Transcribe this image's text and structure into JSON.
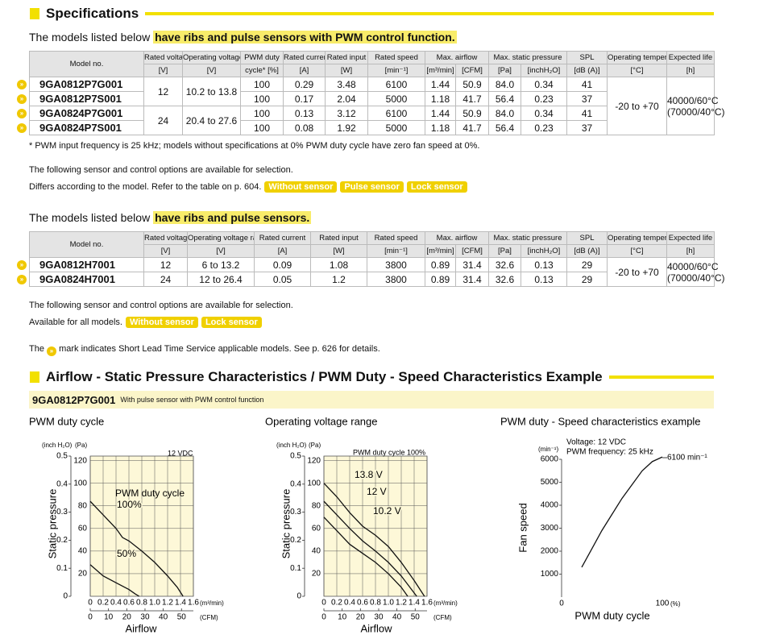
{
  "header": {
    "title": "Specifications"
  },
  "table1": {
    "intro": "The models listed below",
    "highlight": "have ribs and pulse sensors with PWM control function.",
    "columns": [
      {
        "label": "Model no."
      },
      {
        "label": "Rated voltage",
        "units": [
          "[V]"
        ]
      },
      {
        "label": "Operating voltage range",
        "units": [
          "[V]"
        ]
      },
      {
        "label": "PWM duty",
        "units": [
          "cycle* [%]"
        ]
      },
      {
        "label": "Rated current",
        "units": [
          "[A]"
        ]
      },
      {
        "label": "Rated input",
        "units": [
          "[W]"
        ]
      },
      {
        "label": "Rated speed",
        "units": [
          "[min⁻¹]"
        ]
      },
      {
        "label": "Max. airflow",
        "units": [
          "[m³/min]",
          "[CFM]"
        ]
      },
      {
        "label": "Max. static pressure",
        "units": [
          "[Pa]",
          "[inchH₂O]"
        ]
      },
      {
        "label": "SPL",
        "units": [
          "[dB (A)]"
        ]
      },
      {
        "label": "Operating temperature",
        "units": [
          "[°C]"
        ]
      },
      {
        "label": "Expected life",
        "units": [
          "[h]"
        ]
      }
    ],
    "groups": [
      {
        "cells": [
          "12",
          "10.2 to 13.8"
        ],
        "models": [
          {
            "model": "9GA0812P7G001",
            "values": [
              "100",
              "0.29",
              "3.48",
              "6100",
              "1.44",
              "50.9",
              "84.0",
              "0.34",
              "41"
            ]
          },
          {
            "model": "9GA0812P7S001",
            "values": [
              "100",
              "0.17",
              "2.04",
              "5000",
              "1.18",
              "41.7",
              "56.4",
              "0.23",
              "37"
            ]
          }
        ]
      },
      {
        "cells": [
          "24",
          "20.4 to 27.6"
        ],
        "models": [
          {
            "model": "9GA0824P7G001",
            "values": [
              "100",
              "0.13",
              "3.12",
              "6100",
              "1.44",
              "50.9",
              "84.0",
              "0.34",
              "41"
            ]
          },
          {
            "model": "9GA0824P7S001",
            "values": [
              "100",
              "0.08",
              "1.92",
              "5000",
              "1.18",
              "41.7",
              "56.4",
              "0.23",
              "37"
            ]
          }
        ]
      }
    ],
    "shared": [
      "-20 to +70",
      [
        "40000/60°C",
        "(70000/40°C)"
      ]
    ],
    "note": "* PWM input frequency is 25 kHz; models without specifications at 0% PWM duty cycle have zero fan speed at 0%."
  },
  "options1": {
    "lines": [
      "The following sensor and control options are available for selection.",
      "Differs according to the model. Refer to the table on p. 604."
    ],
    "badges": [
      "Without sensor",
      "Pulse sensor",
      "Lock sensor"
    ]
  },
  "table2": {
    "intro": "The models listed below",
    "highlight": "have ribs and pulse sensors.",
    "columns": [
      {
        "label": "Model no."
      },
      {
        "label": "Rated voltage",
        "units": [
          "[V]"
        ]
      },
      {
        "label": "Operating voltage range",
        "units": [
          "[V]"
        ]
      },
      {
        "label": "Rated current",
        "units": [
          "[A]"
        ]
      },
      {
        "label": "Rated input",
        "units": [
          "[W]"
        ]
      },
      {
        "label": "Rated speed",
        "units": [
          "[min⁻¹]"
        ]
      },
      {
        "label": "Max. airflow",
        "units": [
          "[m³/min]",
          "[CFM]"
        ]
      },
      {
        "label": "Max. static pressure",
        "units": [
          "[Pa]",
          "[inchH₂O]"
        ]
      },
      {
        "label": "SPL",
        "units": [
          "[dB (A)]"
        ]
      },
      {
        "label": "Operating temperature",
        "units": [
          "[°C]"
        ]
      },
      {
        "label": "Expected life",
        "units": [
          "[h]"
        ]
      }
    ],
    "groups": [
      {
        "cells": [
          "12",
          "6 to 13.2"
        ],
        "models": [
          {
            "model": "9GA0812H7001",
            "values": [
              "0.09",
              "1.08",
              "3800",
              "0.89",
              "31.4",
              "32.6",
              "0.13",
              "29"
            ]
          }
        ]
      },
      {
        "cells": [
          "24",
          "12 to 26.4"
        ],
        "models": [
          {
            "model": "9GA0824H7001",
            "values": [
              "0.05",
              "1.2",
              "3800",
              "0.89",
              "31.4",
              "32.6",
              "0.13",
              "29"
            ]
          }
        ]
      }
    ],
    "shared": [
      "-20 to +70",
      [
        "40000/60°C",
        "(70000/40°C)"
      ]
    ]
  },
  "options2": {
    "lines": [
      "The following sensor and control options are available for selection.",
      "Available for all models."
    ],
    "badges": [
      "Without sensor",
      "Lock sensor"
    ]
  },
  "legend_note": {
    "before": "The",
    "after": "mark indicates Short Lead Time Service applicable models. See p. 626 for details."
  },
  "section2": {
    "title": "Airflow - Static Pressure Characteristics / PWM Duty - Speed Characteristics Example",
    "model": "9GA0812P7G001",
    "model_note": "With pulse sensor with PWM control function"
  },
  "charts": [
    {
      "type": "line",
      "title": "PWM duty cycle",
      "annotations": [
        "12 VDC",
        "PWM duty cycle"
      ],
      "ylabel": "Static pressure",
      "xlabel": "Airflow",
      "ylim": [
        0,
        124
      ],
      "yticks": [
        20,
        40,
        60,
        80,
        100,
        120
      ],
      "yunit": "(Pa)",
      "y2lim": [
        0,
        0.5
      ],
      "y2ticks": [
        0,
        0.1,
        0.2,
        0.3,
        0.4,
        0.5
      ],
      "y2unit": "(inch H₂O)",
      "xlim": [
        0,
        1.6
      ],
      "xticks": [
        0,
        0.2,
        0.4,
        0.6,
        0.8,
        {
          "value": 1,
          "label": "1.0"
        },
        1.2,
        1.4,
        1.6
      ],
      "xunit": "(m³/min)",
      "x2lim": [
        0,
        56.5
      ],
      "x2ticks": [
        0,
        10,
        20,
        30,
        40,
        50
      ],
      "x2unit": "(CFM)",
      "grid": true,
      "series": [
        {
          "name": "100%",
          "x": [
            0,
            0.2,
            0.4,
            0.5,
            0.6,
            0.8,
            1.0,
            1.2,
            1.35,
            1.44
          ],
          "values": [
            84,
            72,
            60,
            52,
            49,
            40,
            30,
            18,
            8,
            0
          ]
        },
        {
          "name": "50%",
          "x": [
            0,
            0.2,
            0.4,
            0.6,
            0.7,
            0.76
          ],
          "values": [
            28,
            18,
            12,
            6,
            2,
            0
          ]
        }
      ]
    },
    {
      "type": "line",
      "title": "Operating voltage range",
      "annotations": [
        "PWM duty cycle 100%"
      ],
      "ylabel": "Static pressure",
      "xlabel": "Airflow",
      "ylim": [
        0,
        124
      ],
      "yticks": [
        20,
        40,
        60,
        80,
        100,
        120
      ],
      "yunit": "(Pa)",
      "y2lim": [
        0,
        0.5
      ],
      "y2ticks": [
        0,
        0.1,
        0.2,
        0.3,
        0.4,
        0.5
      ],
      "y2unit": "(inch H₂O)",
      "xlim": [
        0,
        1.6
      ],
      "xticks": [
        0,
        0.2,
        0.4,
        0.6,
        0.8,
        {
          "value": 1,
          "label": "1.0"
        },
        1.2,
        1.4,
        1.6
      ],
      "xunit": "(m³/min)",
      "x2lim": [
        0,
        56.5
      ],
      "x2ticks": [
        0,
        10,
        20,
        30,
        40,
        50
      ],
      "x2unit": "(CFM)",
      "grid": true,
      "series": [
        {
          "name": "13.8 V",
          "x": [
            0,
            0.2,
            0.4,
            0.6,
            0.8,
            1.0,
            1.2,
            1.4,
            1.56
          ],
          "values": [
            100,
            88,
            74,
            62,
            54,
            44,
            30,
            14,
            0
          ]
        },
        {
          "name": "12 V",
          "x": [
            0,
            0.2,
            0.4,
            0.6,
            0.8,
            1.0,
            1.2,
            1.44
          ],
          "values": [
            84,
            72,
            60,
            49,
            40,
            30,
            18,
            0
          ]
        },
        {
          "name": "10.2 V",
          "x": [
            0,
            0.2,
            0.4,
            0.6,
            0.8,
            1.0,
            1.2,
            1.3
          ],
          "values": [
            70,
            58,
            46,
            38,
            30,
            20,
            8,
            0
          ]
        }
      ]
    },
    {
      "type": "line",
      "title": "PWM duty - Speed characteristics example",
      "annotations": [
        "Voltage: 12 VDC",
        "PWM frequency: 25 kHz"
      ],
      "ylabel": "Fan speed",
      "xlabel": "PWM duty cycle",
      "ylim": [
        0,
        6000
      ],
      "yticks": [
        1000,
        2000,
        3000,
        4000,
        5000,
        6000
      ],
      "yunit": "(min⁻¹)",
      "xlim": [
        0,
        100
      ],
      "xticks": [
        0,
        100
      ],
      "xunit": "(%)",
      "grid": false,
      "end_label": "6100 min⁻¹",
      "series": [
        {
          "x": [
            20,
            30,
            40,
            50,
            60,
            70,
            80,
            90,
            100
          ],
          "values": [
            1300,
            2100,
            2900,
            3600,
            4300,
            4900,
            5500,
            5900,
            6100
          ]
        }
      ]
    }
  ]
}
